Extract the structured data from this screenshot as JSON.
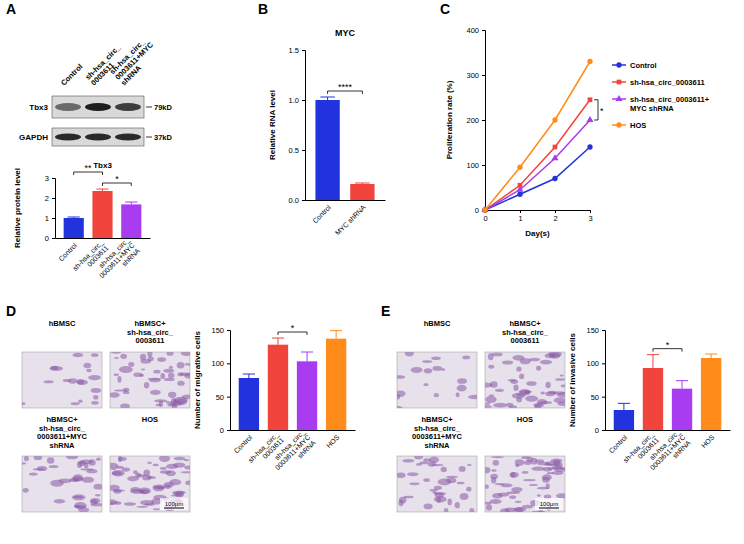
{
  "chart_data": [
    {
      "panel": "A",
      "type": "bar",
      "title": "Tbx3",
      "y_label": "Relative protein level",
      "categories": [
        "Control",
        "sh-hsa_circ_0003611",
        "sh-hsa_circ_0003611+MYC shRNA"
      ],
      "values": [
        1.0,
        2.35,
        1.68
      ],
      "errors": [
        0.05,
        0.1,
        0.12
      ],
      "colors": [
        "#2233dd",
        "#f0443c",
        "#a83cf0"
      ],
      "ylim": [
        0,
        3
      ],
      "yticks": [
        0,
        1,
        2,
        3
      ],
      "significance": [
        {
          "between": [
            1,
            2
          ],
          "label": "*"
        },
        {
          "between": [
            0,
            1
          ],
          "label": "**"
        }
      ]
    },
    {
      "panel": "B",
      "type": "bar",
      "title": "MYC",
      "y_label": "Relative RNA level",
      "categories": [
        "Control",
        "MYC shRNA"
      ],
      "values": [
        1.0,
        0.16
      ],
      "errors": [
        0.03,
        0.01
      ],
      "colors": [
        "#2233dd",
        "#f0443c"
      ],
      "ylim": [
        0,
        1.5
      ],
      "yticks": [
        {
          "value": 0,
          "label": "0.0"
        },
        {
          "value": 0.5,
          "label": "0.5"
        },
        {
          "value": 1,
          "label": "1.0"
        },
        {
          "value": 1.5,
          "label": "1.5"
        }
      ],
      "significance": [
        {
          "between": [
            0,
            1
          ],
          "label": "****"
        }
      ]
    },
    {
      "panel": "C",
      "type": "line",
      "x_label": "Day(s)",
      "y_label": "Proliferation rate (%)",
      "x": [
        0,
        1,
        2,
        3
      ],
      "xlim": [
        0,
        3
      ],
      "xticks": [
        0,
        1,
        2,
        3
      ],
      "ylim": [
        0,
        400
      ],
      "yticks": [
        0,
        100,
        200,
        300,
        400
      ],
      "legend": "right",
      "series": [
        {
          "name": "Control",
          "color": "#2233dd",
          "marker": "circle",
          "values": [
            0,
            35,
            70,
            140
          ]
        },
        {
          "name": "sh-hsa_circ_0003611",
          "color": "#f0443c",
          "marker": "square",
          "values": [
            0,
            55,
            140,
            245
          ]
        },
        {
          "name": "sh-hsa_circ_0003611+MYC shRNA",
          "color": "#a83cf0",
          "marker": "triangle",
          "values": [
            0,
            45,
            115,
            200
          ]
        },
        {
          "name": "HOS",
          "color": "#ff8c1a",
          "marker": "circle",
          "values": [
            0,
            95,
            200,
            330
          ]
        }
      ],
      "significance": [
        {
          "between": [
            1,
            2
          ],
          "label": "*"
        }
      ]
    },
    {
      "panel": "D",
      "type": "bar",
      "y_label": "Number of migrative cells",
      "categories": [
        "Control",
        "sh-hsa_circ_0003611",
        "sh-hsa_circ_0003611+MYC shRNA",
        "HOS"
      ],
      "values": [
        78,
        128,
        103,
        137
      ],
      "errors": [
        6,
        10,
        14,
        12
      ],
      "colors": [
        "#2233dd",
        "#f0443c",
        "#a83cf0",
        "#ff8c1a"
      ],
      "ylim": [
        0,
        150
      ],
      "yticks": [
        0,
        50,
        100,
        150
      ],
      "significance": [
        {
          "between": [
            1,
            2
          ],
          "label": "*"
        }
      ]
    },
    {
      "panel": "E",
      "type": "bar",
      "y_label": "Number of invasive cells",
      "categories": [
        "Control",
        "sh-hsa_circ_0003611",
        "sh-hsa_circ_0003611+MYC shRNA",
        "HOS"
      ],
      "values": [
        30,
        93,
        62,
        108
      ],
      "errors": [
        10,
        20,
        12,
        6
      ],
      "colors": [
        "#2233dd",
        "#f0443c",
        "#a83cf0",
        "#ff8c1a"
      ],
      "ylim": [
        0,
        150
      ],
      "yticks": [
        0,
        50,
        100,
        150
      ],
      "significance": [
        {
          "between": [
            1,
            2
          ],
          "label": "*"
        }
      ]
    }
  ],
  "blot": {
    "lanes": [
      "Control",
      "sh-hsa_circ_0003611",
      "sh-hsa_circ_0003611+MYC shRNA"
    ],
    "rows": [
      {
        "name": "Tbx3",
        "size": "79kD"
      },
      {
        "name": "GAPDH",
        "size": "37kD"
      }
    ]
  },
  "images": [
    {
      "labels": [
        "hBMSC",
        "hBMSC+sh-hsa_circ_0003611",
        "hBMSC+sh-hsa_circ_0003611+MYC shRNA",
        "HOS"
      ],
      "scale_bar": "100μm"
    },
    {
      "labels": [
        "hBMSC",
        "hBMSC+sh-hsa_circ_0003611",
        "hBMSC+sh-hsa_circ_0003611+MYC shRNA",
        "HOS"
      ],
      "scale_bar": "100μm"
    }
  ]
}
